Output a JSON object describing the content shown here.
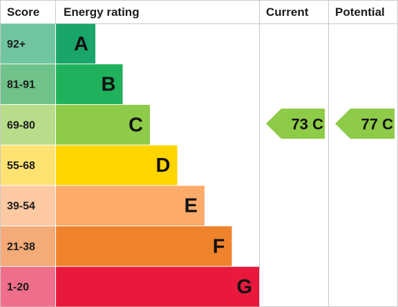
{
  "headers": {
    "score": "Score",
    "energy_rating": "Energy rating",
    "current": "Current",
    "potential": "Potential"
  },
  "chart_data": {
    "type": "bar",
    "categories": [
      "A",
      "B",
      "C",
      "D",
      "E",
      "F",
      "G"
    ],
    "score_ranges": [
      "92+",
      "81-91",
      "69-80",
      "55-68",
      "39-54",
      "21-38",
      "1-20"
    ],
    "band_colors": [
      "#1aa56b",
      "#1fb15b",
      "#8dcb48",
      "#ffd500",
      "#fdab6b",
      "#ef832c",
      "#e8193d"
    ],
    "score_colors": [
      "#6fc6a0",
      "#6fc28a",
      "#b8dc8a",
      "#ffe372",
      "#fcc9a2",
      "#f4ab77",
      "#ef6f8a"
    ],
    "current": {
      "value": 73,
      "band": "C",
      "label": "73 C",
      "color": "#8dcb48"
    },
    "potential": {
      "value": 77,
      "band": "C",
      "label": "77 C",
      "color": "#8dcb48"
    }
  }
}
